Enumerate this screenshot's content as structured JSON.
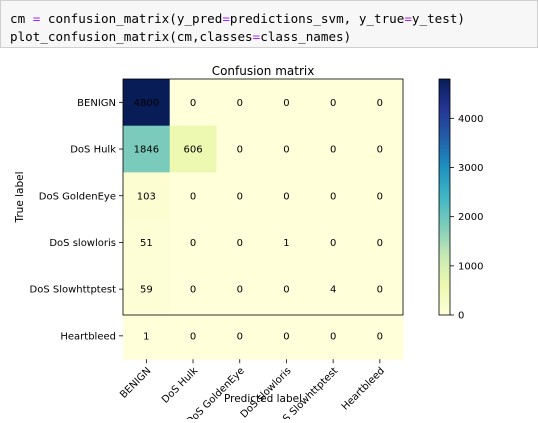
{
  "code": {
    "line1": {
      "a": "cm ",
      "b": "=",
      "c": " confusion_matrix(y_pred",
      "d": "=",
      "e": "predictions_svm, y_true",
      "f": "=",
      "g": "y_test)"
    },
    "line2": {
      "a": "plot_confusion_matrix(cm,classes",
      "b": "=",
      "c": "class_names)"
    }
  },
  "chart_data": {
    "type": "heatmap",
    "title": "Confusion matrix",
    "xlabel": "Predicted label",
    "ylabel": "True label",
    "row_labels": [
      "BENIGN",
      "DoS Hulk",
      "DoS GoldenEye",
      "DoS slowloris",
      "DoS Slowhttptest",
      "Heartbleed"
    ],
    "col_labels": [
      "BENIGN",
      "DoS Hulk",
      "DoS GoldenEye",
      "DoS slowloris",
      "DoS Slowhttptest",
      "Heartbleed"
    ],
    "values": [
      [
        4800,
        0,
        0,
        0,
        0,
        0
      ],
      [
        1846,
        606,
        0,
        0,
        0,
        0
      ],
      [
        103,
        0,
        0,
        0,
        0,
        0
      ],
      [
        51,
        0,
        0,
        1,
        0,
        0
      ],
      [
        59,
        0,
        0,
        0,
        4,
        0
      ],
      [
        1,
        0,
        0,
        0,
        0,
        0
      ]
    ],
    "colormap": "YlGnBu",
    "colorbar_range": [
      0,
      4800
    ],
    "colorbar_ticks": [
      0,
      1000,
      2000,
      3000,
      4000
    ]
  }
}
